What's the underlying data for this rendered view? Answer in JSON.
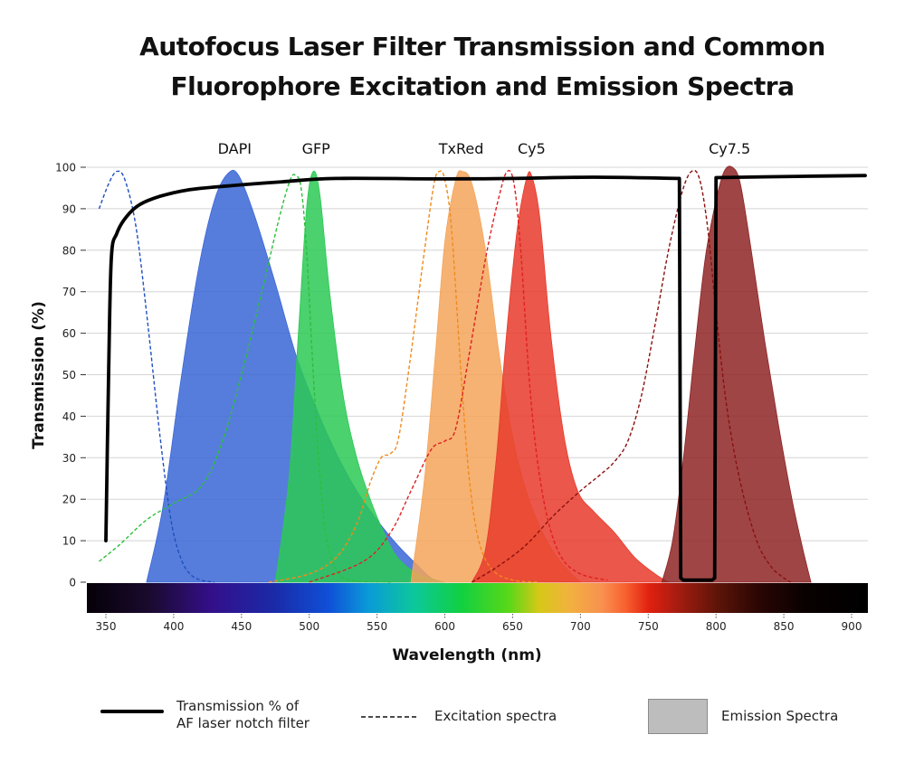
{
  "chart_data": {
    "type": "area",
    "title": "Autofocus Laser Filter Transmission and Common Fluorophore Excitation and Emission Spectra",
    "title_lines": [
      "Autofocus Laser Filter Transmission and Common",
      "Fluorophore Excitation and Emission Spectra"
    ],
    "xlabel": "Wavelength (nm)",
    "ylabel": "Transmission (%)",
    "xlim": [
      340,
      910
    ],
    "ylim": [
      0,
      100
    ],
    "x_ticks": [
      350,
      400,
      450,
      500,
      550,
      600,
      650,
      700,
      750,
      800,
      850,
      900
    ],
    "y_ticks": [
      0,
      10,
      20,
      30,
      40,
      50,
      60,
      70,
      80,
      90,
      100
    ],
    "grid": true,
    "fluorophore_labels": [
      {
        "text": "DAPI",
        "x": 445
      },
      {
        "text": "GFP",
        "x": 505
      },
      {
        "text": "TxRed",
        "x": 612
      },
      {
        "text": "Cy5",
        "x": 664
      },
      {
        "text": "Cy7.5",
        "x": 810
      }
    ],
    "filter_transmission": {
      "name": "Transmission % of AF laser notch filter",
      "color": "#000000",
      "points": [
        [
          350,
          10
        ],
        [
          352,
          50
        ],
        [
          354,
          78
        ],
        [
          358,
          84
        ],
        [
          365,
          88
        ],
        [
          375,
          91
        ],
        [
          390,
          93
        ],
        [
          410,
          94.5
        ],
        [
          440,
          95.5
        ],
        [
          480,
          96.5
        ],
        [
          520,
          97.3
        ],
        [
          600,
          97.2
        ],
        [
          650,
          97.3
        ],
        [
          710,
          97.6
        ],
        [
          773,
          97.3
        ],
        [
          774,
          1
        ],
        [
          776,
          0.5
        ],
        [
          797,
          0.5
        ],
        [
          799,
          1
        ],
        [
          800,
          97.5
        ],
        [
          860,
          97.8
        ],
        [
          910,
          98
        ]
      ]
    },
    "excitation_series": [
      {
        "name": "DAPI excitation",
        "color": "#1f4fbf",
        "points": [
          [
            345,
            90
          ],
          [
            352,
            96
          ],
          [
            358,
            99
          ],
          [
            364,
            97
          ],
          [
            372,
            86
          ],
          [
            380,
            65
          ],
          [
            390,
            35
          ],
          [
            398,
            15
          ],
          [
            405,
            6
          ],
          [
            412,
            2
          ],
          [
            420,
            0.5
          ],
          [
            430,
            0
          ]
        ]
      },
      {
        "name": "GFP excitation",
        "color": "#2cbf3a",
        "points": [
          [
            345,
            5
          ],
          [
            360,
            9
          ],
          [
            380,
            15
          ],
          [
            400,
            19
          ],
          [
            420,
            23
          ],
          [
            435,
            33
          ],
          [
            450,
            50
          ],
          [
            465,
            70
          ],
          [
            478,
            88
          ],
          [
            486,
            97
          ],
          [
            490,
            98
          ],
          [
            494,
            95
          ],
          [
            498,
            80
          ],
          [
            503,
            50
          ],
          [
            508,
            25
          ],
          [
            513,
            10
          ],
          [
            520,
            3
          ],
          [
            530,
            0.5
          ],
          [
            560,
            0
          ]
        ]
      },
      {
        "name": "TxRed excitation",
        "color": "#f08a1a",
        "points": [
          [
            470,
            0
          ],
          [
            500,
            2
          ],
          [
            520,
            6
          ],
          [
            535,
            14
          ],
          [
            545,
            24
          ],
          [
            553,
            30
          ],
          [
            560,
            31
          ],
          [
            566,
            35
          ],
          [
            575,
            55
          ],
          [
            585,
            80
          ],
          [
            592,
            96
          ],
          [
            596,
            99
          ],
          [
            600,
            97
          ],
          [
            605,
            85
          ],
          [
            612,
            50
          ],
          [
            618,
            25
          ],
          [
            625,
            10
          ],
          [
            635,
            3
          ],
          [
            650,
            0.5
          ],
          [
            670,
            0
          ]
        ]
      },
      {
        "name": "Cy5 excitation",
        "color": "#e02020",
        "points": [
          [
            500,
            0
          ],
          [
            540,
            5
          ],
          [
            560,
            12
          ],
          [
            575,
            22
          ],
          [
            590,
            32
          ],
          [
            600,
            34
          ],
          [
            608,
            37
          ],
          [
            618,
            55
          ],
          [
            630,
            78
          ],
          [
            640,
            93
          ],
          [
            646,
            99
          ],
          [
            651,
            96
          ],
          [
            656,
            80
          ],
          [
            662,
            50
          ],
          [
            668,
            30
          ],
          [
            676,
            15
          ],
          [
            686,
            6
          ],
          [
            700,
            2
          ],
          [
            720,
            0.5
          ]
        ]
      },
      {
        "name": "Cy7.5 excitation",
        "color": "#8b1010",
        "points": [
          [
            620,
            0
          ],
          [
            640,
            4
          ],
          [
            660,
            9
          ],
          [
            680,
            16
          ],
          [
            700,
            22
          ],
          [
            715,
            26
          ],
          [
            725,
            29
          ],
          [
            735,
            34
          ],
          [
            745,
            45
          ],
          [
            755,
            62
          ],
          [
            765,
            80
          ],
          [
            775,
            94
          ],
          [
            782,
            99
          ],
          [
            788,
            97
          ],
          [
            794,
            85
          ],
          [
            800,
            65
          ],
          [
            808,
            42
          ],
          [
            818,
            24
          ],
          [
            830,
            10
          ],
          [
            840,
            4
          ],
          [
            848,
            1.5
          ],
          [
            855,
            0
          ]
        ]
      }
    ],
    "emission_series": [
      {
        "name": "DAPI emission",
        "color": "#3a66d6",
        "points": [
          [
            380,
            0
          ],
          [
            392,
            18
          ],
          [
            405,
            48
          ],
          [
            418,
            75
          ],
          [
            430,
            92
          ],
          [
            440,
            98.5
          ],
          [
            448,
            98
          ],
          [
            460,
            88
          ],
          [
            475,
            72
          ],
          [
            490,
            55
          ],
          [
            505,
            42
          ],
          [
            520,
            31
          ],
          [
            535,
            22
          ],
          [
            550,
            15
          ],
          [
            565,
            9
          ],
          [
            580,
            4
          ],
          [
            590,
            1
          ],
          [
            600,
            0
          ]
        ]
      },
      {
        "name": "GFP emission",
        "color": "#2bc955",
        "points": [
          [
            475,
            0
          ],
          [
            485,
            25
          ],
          [
            492,
            60
          ],
          [
            498,
            90
          ],
          [
            503,
            99
          ],
          [
            508,
            93
          ],
          [
            515,
            70
          ],
          [
            525,
            45
          ],
          [
            535,
            30
          ],
          [
            545,
            20
          ],
          [
            555,
            12
          ],
          [
            565,
            6
          ],
          [
            580,
            2
          ],
          [
            600,
            0
          ]
        ]
      },
      {
        "name": "TxRed emission",
        "color": "#f4a55a",
        "points": [
          [
            575,
            0
          ],
          [
            585,
            25
          ],
          [
            593,
            55
          ],
          [
            600,
            82
          ],
          [
            608,
            97
          ],
          [
            613,
            99
          ],
          [
            620,
            96
          ],
          [
            630,
            80
          ],
          [
            640,
            55
          ],
          [
            650,
            35
          ],
          [
            660,
            22
          ],
          [
            672,
            12
          ],
          [
            685,
            5
          ],
          [
            700,
            0
          ]
        ]
      },
      {
        "name": "Cy5 emission",
        "color": "#e83a2a",
        "points": [
          [
            620,
            0
          ],
          [
            630,
            8
          ],
          [
            638,
            30
          ],
          [
            645,
            58
          ],
          [
            653,
            84
          ],
          [
            660,
            97
          ],
          [
            664,
            98
          ],
          [
            670,
            88
          ],
          [
            678,
            60
          ],
          [
            688,
            35
          ],
          [
            698,
            22
          ],
          [
            710,
            17
          ],
          [
            725,
            12
          ],
          [
            740,
            6
          ],
          [
            755,
            2
          ],
          [
            765,
            0
          ]
        ]
      },
      {
        "name": "Cy7.5 emission",
        "color": "#8e2424",
        "points": [
          [
            760,
            0
          ],
          [
            768,
            10
          ],
          [
            776,
            30
          ],
          [
            784,
            55
          ],
          [
            792,
            78
          ],
          [
            800,
            92
          ],
          [
            806,
            99
          ],
          [
            812,
            100
          ],
          [
            818,
            96
          ],
          [
            826,
            80
          ],
          [
            836,
            58
          ],
          [
            846,
            38
          ],
          [
            856,
            20
          ],
          [
            864,
            8
          ],
          [
            870,
            0
          ]
        ]
      }
    ],
    "legend": [
      {
        "label_lines": [
          "Transmission % of",
          "AF laser notch filter"
        ],
        "style": "solid-line"
      },
      {
        "label": "Excitation spectra",
        "style": "dashed-line"
      },
      {
        "label": "Emission Spectra",
        "style": "filled-box"
      }
    ]
  }
}
